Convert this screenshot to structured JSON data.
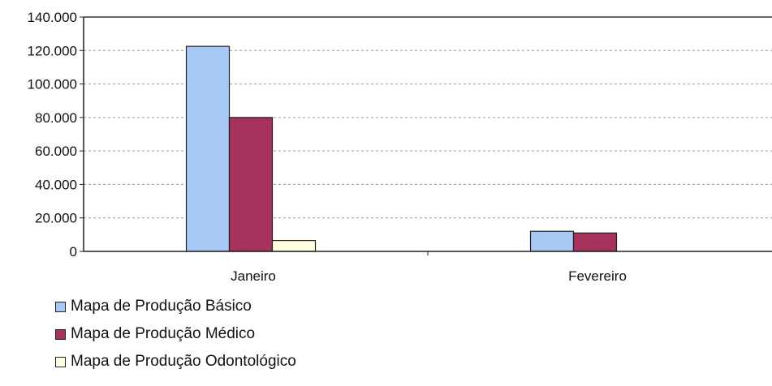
{
  "chart_data": {
    "type": "bar",
    "categories": [
      "Janeiro",
      "Fevereiro"
    ],
    "series": [
      {
        "name": "Mapa de Produção Básico",
        "color": "#a6c8f5",
        "values": [
          122500,
          12000
        ]
      },
      {
        "name": "Mapa de Produção Médico",
        "color": "#a8325e",
        "values": [
          80000,
          11000
        ]
      },
      {
        "name": "Mapa de Produção Odontológico",
        "color": "#ffffdf",
        "values": [
          6500,
          0
        ]
      }
    ],
    "y_ticks": [
      "0",
      "20.000",
      "40.000",
      "60.000",
      "80.000",
      "100.000",
      "120.000",
      "140.000"
    ],
    "ylim": [
      0,
      140000
    ],
    "grid": true,
    "legend_position": "bottom-left"
  }
}
